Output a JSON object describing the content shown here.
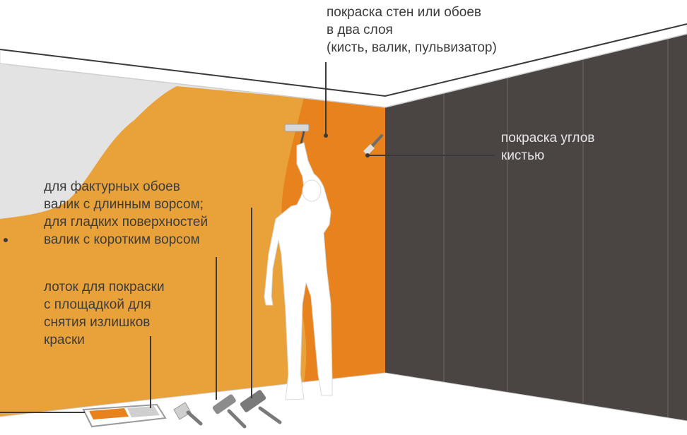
{
  "annotations": {
    "painting": [
      "покраска стен или обоев",
      "в два слоя",
      "(кисть, валик, пульвизатор)"
    ],
    "corners": [
      "покраска углов",
      "кистью"
    ],
    "rollers": [
      "для фактурных обоев",
      "валик с длинным ворсом;",
      "для гладких поверхностей",
      "валик с коротким ворсом"
    ],
    "tray": [
      "лоток для покраски",
      "с площадкой для",
      "снятия излишков",
      "краски"
    ]
  },
  "colors": {
    "wall_light": "#e9a23a",
    "wall_orange": "#e8821c",
    "wall_dark": "#4a4442",
    "unpainted": "#e3e3e3",
    "ceiling_trim": "#ffffff",
    "leader_line": "#3a3a3a",
    "text_dark": "#3c3c3c",
    "text_light": "#e6e6e6"
  }
}
